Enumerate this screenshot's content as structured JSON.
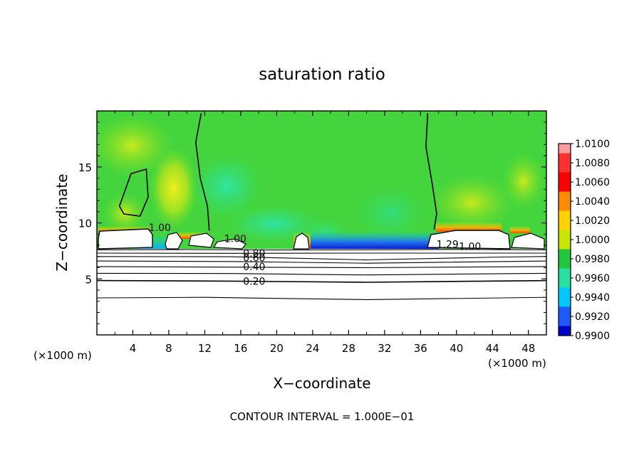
{
  "chart_data": {
    "type": "heatmap",
    "title": "saturation ratio",
    "xlabel": "X−coordinate",
    "ylabel": "Z−coordinate",
    "x_unit_left": "(×1000 m)",
    "x_unit_right": "(×1000 m)",
    "footer": "CONTOUR INTERVAL = 1.000E−01",
    "xlim": [
      0,
      50
    ],
    "ylim": [
      0,
      20
    ],
    "xticks": [
      4,
      8,
      12,
      16,
      20,
      24,
      28,
      32,
      36,
      40,
      44,
      48
    ],
    "yticks": [
      5,
      10,
      15
    ],
    "colorbar": {
      "min": 0.99,
      "max": 1.01,
      "labels": [
        "1.0100",
        "1.0080",
        "1.0060",
        "1.0040",
        "1.0020",
        "1.0000",
        "0.9980",
        "0.9960",
        "0.9940",
        "0.9920",
        "0.9900"
      ],
      "colors": [
        "#ff9b9b",
        "#ff3030",
        "#ff0000",
        "#ff8c00",
        "#ffd200",
        "#c8e600",
        "#22c83c",
        "#28e0a0",
        "#00c8ff",
        "#1e5aff",
        "#0000c8",
        "#5a00a0"
      ]
    },
    "contour_labels": [
      {
        "text": "1.00",
        "x": 7.0,
        "z": 9.6
      },
      {
        "text": "1.00",
        "x": 15.4,
        "z": 8.6
      },
      {
        "text": "0.80",
        "x": 17.5,
        "z": 7.3
      },
      {
        "text": "0.60",
        "x": 17.5,
        "z": 6.9
      },
      {
        "text": "0.40",
        "x": 17.5,
        "z": 6.1
      },
      {
        "text": "0.20",
        "x": 17.5,
        "z": 4.8
      },
      {
        "text": "1.29",
        "x": 39.0,
        "z": 8.1
      },
      {
        "text": "1.00",
        "x": 41.5,
        "z": 7.9
      }
    ],
    "contours": [
      {
        "value": 1.0,
        "points": [
          [
            11.6,
            19.8
          ],
          [
            11.0,
            17.2
          ],
          [
            11.5,
            14.0
          ],
          [
            12.3,
            11.5
          ],
          [
            12.5,
            9.3
          ]
        ]
      },
      {
        "value": 1.0,
        "points": [
          [
            36.8,
            19.8
          ],
          [
            36.6,
            16.8
          ],
          [
            37.3,
            13.5
          ],
          [
            37.8,
            10.8
          ],
          [
            37.5,
            9.4
          ]
        ]
      },
      {
        "value": 1.0,
        "points": [
          [
            2.5,
            11.5
          ],
          [
            3.8,
            14.4
          ],
          [
            5.5,
            14.8
          ],
          [
            5.7,
            12.3
          ],
          [
            4.8,
            10.6
          ],
          [
            3.0,
            10.8
          ],
          [
            2.5,
            11.5
          ]
        ]
      },
      {
        "value": 0.8,
        "points": [
          [
            0,
            7.6
          ],
          [
            10,
            7.62
          ],
          [
            20,
            7.58
          ],
          [
            30,
            7.6
          ],
          [
            40,
            7.63
          ],
          [
            50,
            7.6
          ]
        ]
      },
      {
        "value": 0.7,
        "points": [
          [
            0,
            7.3
          ],
          [
            15,
            7.28
          ],
          [
            30,
            7.3
          ],
          [
            50,
            7.3
          ]
        ]
      },
      {
        "value": 0.6,
        "points": [
          [
            0,
            7.0
          ],
          [
            15,
            6.98
          ],
          [
            30,
            6.7
          ],
          [
            45,
            6.95
          ],
          [
            50,
            7.0
          ]
        ]
      },
      {
        "value": 0.5,
        "points": [
          [
            0,
            6.6
          ],
          [
            15,
            6.55
          ],
          [
            30,
            6.4
          ],
          [
            50,
            6.6
          ]
        ]
      },
      {
        "value": 0.4,
        "points": [
          [
            0,
            6.1
          ],
          [
            15,
            6.05
          ],
          [
            30,
            6.0
          ],
          [
            50,
            6.1
          ]
        ]
      },
      {
        "value": 0.3,
        "points": [
          [
            0,
            5.5
          ],
          [
            15,
            5.48
          ],
          [
            30,
            5.35
          ],
          [
            50,
            5.5
          ]
        ]
      },
      {
        "value": 0.2,
        "points": [
          [
            0,
            4.85
          ],
          [
            15,
            4.8
          ],
          [
            30,
            4.7
          ],
          [
            50,
            4.85
          ]
        ]
      },
      {
        "value": 0.1,
        "points": [
          [
            0,
            3.3
          ],
          [
            12,
            3.35
          ],
          [
            30,
            3.15
          ],
          [
            50,
            3.35
          ]
        ]
      }
    ]
  }
}
